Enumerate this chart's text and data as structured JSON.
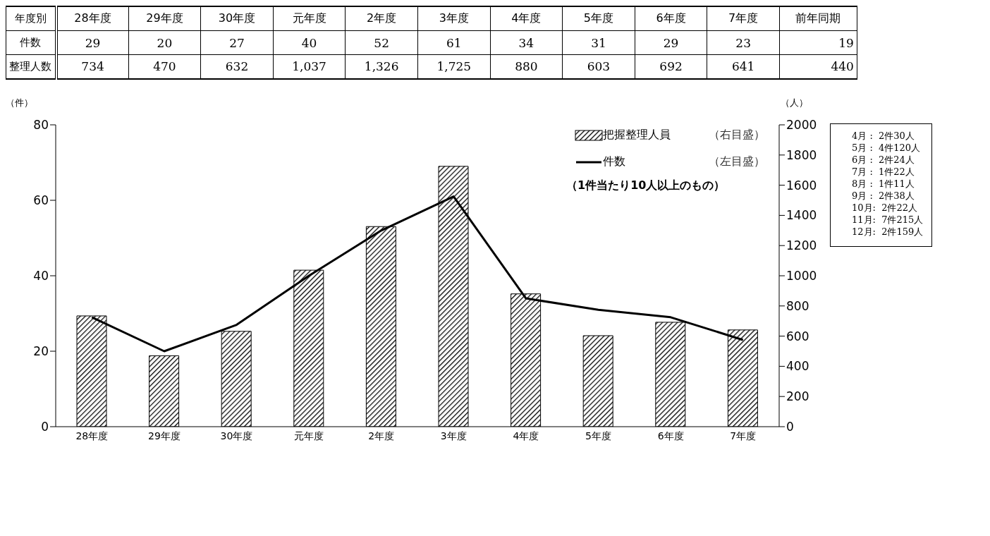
{
  "chart_data": {
    "type": "bar",
    "categories": [
      "28年度",
      "29年度",
      "30年度",
      "元年度",
      "2年度",
      "3年度",
      "4年度",
      "5年度",
      "6年度",
      "7年度"
    ],
    "series": [
      {
        "name": "把握整理人員",
        "axis": "y2",
        "color": "#000000",
        "values": [
          734,
          470,
          632,
          1037,
          1326,
          1725,
          880,
          603,
          692,
          641
        ],
        "value_labels": [
          "734",
          "470",
          "632",
          "1,037",
          "1,326",
          "1,725",
          "880",
          "603",
          "692",
          "641"
        ]
      },
      {
        "name": "件数",
        "type": "line",
        "axis": "y",
        "color": "#000000",
        "values": [
          29,
          20,
          27,
          40,
          52,
          61,
          34,
          31,
          29,
          23
        ]
      }
    ],
    "ylabel": "（件）",
    "y2label": "（人）",
    "ylim": [
      0,
      80
    ],
    "yticks": [
      0,
      20,
      40,
      60,
      80
    ],
    "y2lim": [
      0,
      2000
    ],
    "y2ticks": [
      0,
      200,
      400,
      600,
      800,
      1000,
      1200,
      1400,
      1600,
      1800,
      2000
    ],
    "marker": "none",
    "legend": "top right",
    "data_labels": true,
    "annotations": [
      "年度別",
      "前年同期",
      "19",
      "440",
      "整理人数",
      "（右目盛）",
      "（左目盛）",
      "（1件当たり10人以上のもの）",
      "4月 :  2件30人",
      "5月 :  4件120人",
      "6月 :  2件24人",
      "7月 :  1件22人",
      "8月 :  1件11人",
      "9月 :  2件38人",
      "10月:  2件22人",
      "11月:  7件215人",
      "12月:  2件159人"
    ]
  }
}
